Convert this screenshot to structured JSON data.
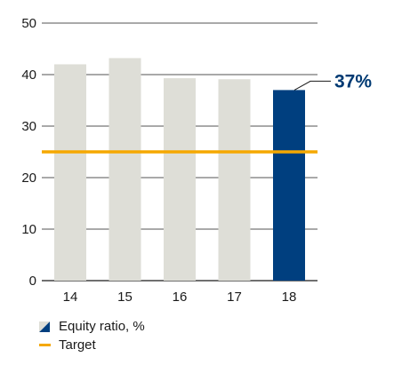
{
  "chart_data": {
    "type": "bar",
    "categories": [
      "14",
      "15",
      "16",
      "17",
      "18"
    ],
    "series": [
      {
        "name": "Equity ratio, %",
        "values": [
          42,
          43.2,
          39.3,
          39.1,
          37
        ]
      }
    ],
    "target": {
      "name": "Target",
      "value": 25
    },
    "ylim": [
      0,
      50
    ],
    "yticks": [
      0,
      10,
      20,
      30,
      40,
      50
    ],
    "grid": true,
    "callout": {
      "category": "18",
      "text": "37%"
    },
    "legend_position": "bottom-left",
    "colors": {
      "past_bar": "#deded7",
      "highlight_bar": "#003f7f",
      "target_line": "#f5a800",
      "callout_text": "#003a73",
      "grid": "#1a1a1a"
    }
  },
  "legend": {
    "equity_label": "Equity ratio, %",
    "target_label": "Target"
  }
}
